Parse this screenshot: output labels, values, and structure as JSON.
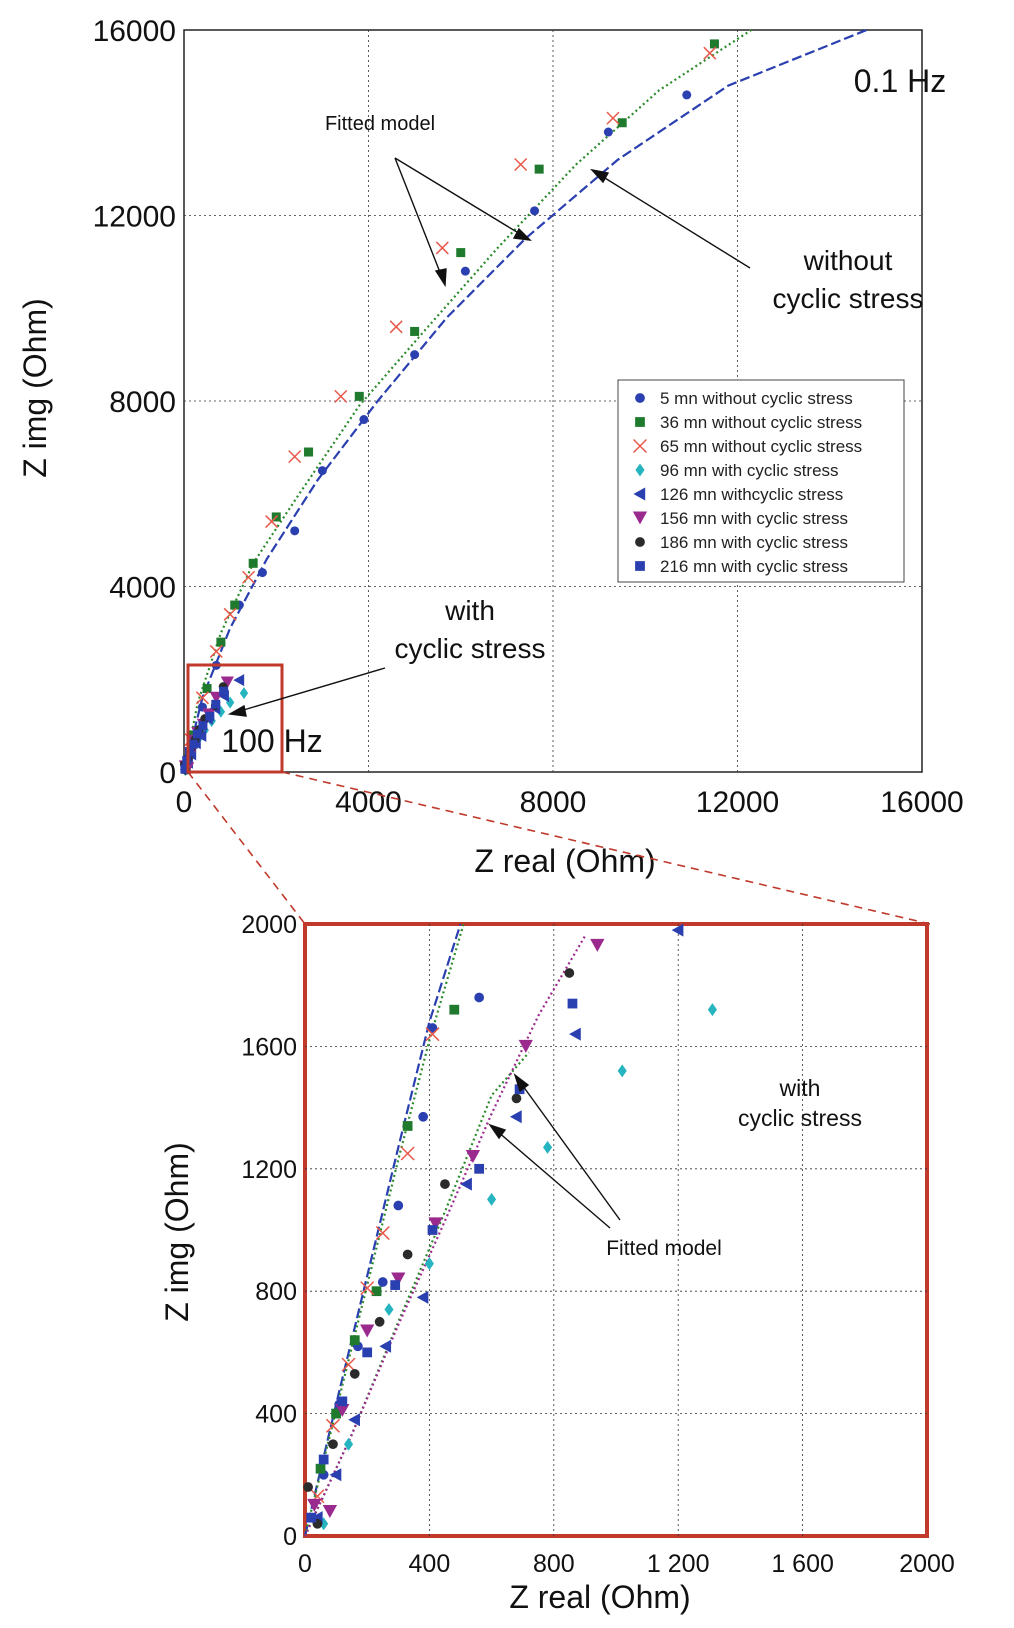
{
  "chart_data": [
    {
      "type": "scatter",
      "title": "",
      "xlabel": "Z real (Ohm)",
      "ylabel": "Z img (Ohm)",
      "xlim": [
        0,
        16000
      ],
      "ylim": [
        0,
        16000
      ],
      "xticks": [
        "0",
        "4000",
        "8000",
        "12000",
        "16000"
      ],
      "yticks": [
        "0",
        "4000",
        "8000",
        "12000",
        "16000"
      ],
      "grid": true,
      "legend_position": "right",
      "annotations": {
        "fitted_model": "Fitted model",
        "low_freq": "0.1 Hz",
        "high_freq": "100 Hz",
        "without_1": "without",
        "without_2": "cyclic stress",
        "with_1": "with",
        "with_2": "cyclic stress"
      },
      "series": [
        {
          "name": "5 mn without cyclic stress",
          "color": "#2a3fb0",
          "marker": "circle",
          "x": [
            200,
            400,
            700,
            1200,
            1700,
            2400,
            3000,
            3900,
            5000,
            6100,
            7600,
            9200,
            10900
          ],
          "y": [
            600,
            1400,
            2300,
            3600,
            4300,
            5200,
            6500,
            7600,
            9000,
            10800,
            12100,
            13800,
            14600
          ]
        },
        {
          "name": "36 mn without cyclic stress",
          "color": "#1f7a2e",
          "marker": "square",
          "x": [
            200,
            500,
            800,
            1100,
            1500,
            2000,
            2700,
            3800,
            5000,
            6000,
            7700,
            9500,
            11500
          ],
          "y": [
            800,
            1800,
            2800,
            3600,
            4500,
            5500,
            6900,
            8100,
            9500,
            11200,
            13000,
            14000,
            15700
          ]
        },
        {
          "name": "65 mn without cyclic stress",
          "color": "#e8584a",
          "marker": "x",
          "x": [
            150,
            400,
            700,
            1000,
            1400,
            1900,
            2400,
            3400,
            4600,
            5600,
            7300,
            9300,
            11400
          ],
          "y": [
            700,
            1600,
            2600,
            3400,
            4200,
            5400,
            6800,
            8100,
            9600,
            11300,
            13100,
            14100,
            15500
          ]
        },
        {
          "name": "96 mn with cyclic stress",
          "color": "#26b5c0",
          "marker": "diamond",
          "x": [
            30,
            60,
            100,
            170,
            300,
            450,
            600,
            800,
            1000,
            1300
          ],
          "y": [
            40,
            100,
            200,
            400,
            700,
            900,
            1100,
            1300,
            1500,
            1700
          ]
        },
        {
          "name": "126 mn withcyclic stress",
          "color": "#2a3fb0",
          "marker": "triangle-left",
          "x": [
            40,
            90,
            160,
            260,
            380,
            520,
            680,
            870,
            1200
          ],
          "y": [
            60,
            200,
            380,
            620,
            780,
            1150,
            1370,
            1640,
            1980
          ]
        },
        {
          "name": "156 mn with cyclic stress",
          "color": "#9b2a8f",
          "marker": "triangle-down",
          "x": [
            30,
            80,
            140,
            220,
            300,
            420,
            540,
            700,
            940
          ],
          "y": [
            120,
            80,
            400,
            670,
            840,
            1020,
            1240,
            1600,
            1930
          ]
        },
        {
          "name": "186 mn with cyclic stress",
          "color": "#2b2b2b",
          "marker": "circle",
          "x": [
            10,
            40,
            90,
            160,
            240,
            330,
            450,
            680,
            850
          ],
          "y": [
            160,
            40,
            300,
            530,
            700,
            920,
            1150,
            1430,
            1840
          ]
        },
        {
          "name": "216 mn with cyclic stress",
          "color": "#2a3fb0",
          "marker": "square",
          "x": [
            20,
            60,
            120,
            200,
            290,
            410,
            560,
            690,
            860
          ],
          "y": [
            60,
            250,
            440,
            600,
            820,
            1000,
            1200,
            1460,
            1740
          ]
        }
      ],
      "fitted_lines": [
        {
          "color": "#2b8a2b",
          "dash": "2,3",
          "x": [
            0,
            300,
            800,
            1500,
            2500,
            3800,
            5200,
            6800,
            8500,
            10300,
            12300
          ],
          "y": [
            0,
            1500,
            3000,
            4500,
            6000,
            7900,
            9500,
            11300,
            13100,
            14700,
            16000
          ]
        },
        {
          "color": "#2a3fb0",
          "dash": "10,4",
          "x": [
            0,
            400,
            1000,
            1800,
            2900,
            4200,
            5700,
            7400,
            9400,
            11800,
            14800
          ],
          "y": [
            0,
            1600,
            3100,
            4600,
            6300,
            8000,
            9800,
            11500,
            13200,
            14800,
            16000
          ]
        }
      ]
    },
    {
      "type": "scatter",
      "title": "",
      "xlabel": "Z real (Ohm)",
      "ylabel": "Z img (Ohm)",
      "xlim": [
        0,
        2000
      ],
      "ylim": [
        0,
        2000
      ],
      "xticks": [
        "0",
        "400",
        "800",
        "1 200",
        "1 600",
        "2000"
      ],
      "yticks": [
        "0",
        "400",
        "800",
        "1200",
        "1600",
        "2000"
      ],
      "grid": true,
      "annotations": {
        "with_1": "with",
        "with_2": "cyclic stress",
        "fitted_model": "Fitted model"
      },
      "series_ref": "same series as main plot, zoomed to 0-2000 Ohm",
      "points": [
        {
          "s": 0,
          "x": [
            60,
            110,
            170,
            250,
            300,
            380,
            410,
            560
          ],
          "y": [
            200,
            430,
            620,
            830,
            1080,
            1370,
            1660,
            1760
          ]
        },
        {
          "s": 1,
          "x": [
            50,
            100,
            160,
            230,
            330,
            480
          ],
          "y": [
            220,
            400,
            640,
            800,
            1340,
            1720
          ]
        },
        {
          "s": 2,
          "x": [
            40,
            90,
            140,
            200,
            250,
            330,
            410
          ],
          "y": [
            130,
            360,
            560,
            810,
            990,
            1250,
            1640
          ]
        },
        {
          "s": 3,
          "x": [
            60,
            140,
            270,
            400,
            600,
            780,
            1020,
            1310
          ],
          "y": [
            40,
            300,
            740,
            890,
            1100,
            1270,
            1520,
            1720
          ]
        },
        {
          "s": 4,
          "x": [
            40,
            100,
            160,
            260,
            380,
            520,
            680,
            870,
            1200
          ],
          "y": [
            60,
            200,
            380,
            620,
            780,
            1150,
            1370,
            1640,
            1980
          ]
        },
        {
          "s": 5,
          "x": [
            30,
            80,
            120,
            200,
            300,
            420,
            540,
            710,
            940
          ],
          "y": [
            100,
            80,
            410,
            670,
            840,
            1020,
            1240,
            1600,
            1930
          ]
        },
        {
          "s": 6,
          "x": [
            10,
            40,
            90,
            160,
            240,
            330,
            450,
            680,
            850
          ],
          "y": [
            160,
            40,
            300,
            530,
            700,
            920,
            1150,
            1430,
            1840
          ]
        },
        {
          "s": 7,
          "x": [
            20,
            60,
            120,
            200,
            290,
            410,
            560,
            690,
            860
          ],
          "y": [
            60,
            250,
            440,
            600,
            820,
            1000,
            1200,
            1460,
            1740
          ]
        }
      ],
      "fitted_lines": [
        {
          "color": "#2a3fb0",
          "dash": "10,4",
          "x": [
            0,
            100,
            200,
            300,
            400,
            500
          ],
          "y": [
            0,
            430,
            850,
            1270,
            1680,
            2000
          ]
        },
        {
          "color": "#2b8a2b",
          "dash": "2,3",
          "x": [
            0,
            100,
            200,
            300,
            400,
            510
          ],
          "y": [
            0,
            410,
            820,
            1230,
            1620,
            2000
          ]
        },
        {
          "color": "#2b8a2b",
          "dash": "2,3",
          "x": [
            0,
            150,
            300,
            450,
            600,
            720
          ],
          "y": [
            0,
            330,
            700,
            1060,
            1440,
            1580
          ]
        },
        {
          "color": "#9b2a8f",
          "dash": "2,3",
          "x": [
            0,
            150,
            300,
            450,
            600,
            750,
            900
          ],
          "y": [
            0,
            330,
            690,
            1030,
            1380,
            1700,
            1960
          ]
        }
      ]
    }
  ]
}
